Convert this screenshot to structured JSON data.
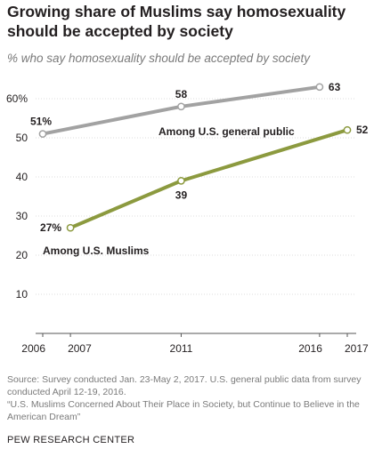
{
  "title": "Growing share of Muslims say homosexuality should be accepted by society",
  "subtitle": "% who say homosexuality should be accepted by society",
  "source": "Source: Survey conducted Jan. 23-May 2, 2017. U.S. general public data from survey conducted April 12-19, 2016.",
  "report": "“U.S. Muslims Concerned About Their Place in Society, but Continue to Believe in the American Dream”",
  "org": "PEW RESEARCH CENTER",
  "colors": {
    "public": "#a2a2a2",
    "muslims": "#8c9a3f",
    "grid": "#dcdcdc",
    "text": "#231f20"
  },
  "chart_data": {
    "type": "line",
    "title": "Growing share of Muslims say homosexuality should be accepted by society",
    "xlabel": "",
    "ylabel": "",
    "xlim": [
      2006,
      2017
    ],
    "ylim": [
      0,
      65
    ],
    "y_ticks": [
      10,
      20,
      30,
      40,
      50,
      60
    ],
    "y_tick_labels": [
      "10",
      "20",
      "30",
      "40",
      "50",
      "60%"
    ],
    "x_tick_labels": [
      "2006",
      "2007",
      "2011",
      "2016",
      "2017"
    ],
    "x_tick_values": [
      2006,
      2007,
      2011,
      2016,
      2017
    ],
    "grid": true,
    "series": [
      {
        "name": "Among U.S. general public",
        "x": [
          2006,
          2011,
          2016
        ],
        "values": [
          51,
          58,
          63
        ],
        "labels": [
          "51%",
          "58",
          "63"
        ]
      },
      {
        "name": "Among U.S. Muslims",
        "x": [
          2007,
          2011,
          2017
        ],
        "values": [
          27,
          39,
          52
        ],
        "labels": [
          "27%",
          "39",
          "52"
        ]
      }
    ]
  }
}
